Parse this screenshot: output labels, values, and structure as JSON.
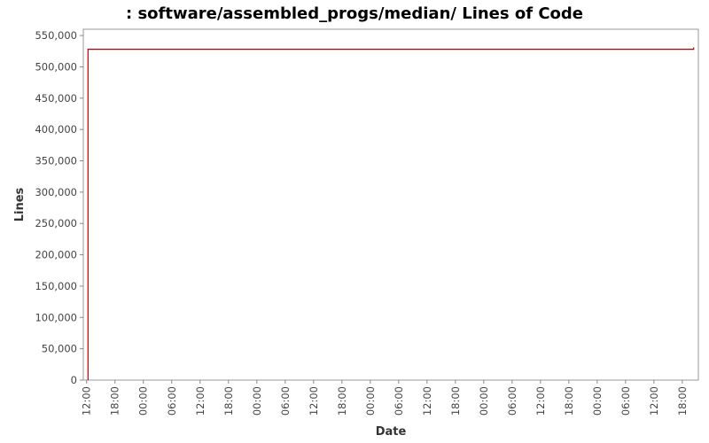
{
  "chart_data": {
    "type": "line",
    "title": ": software/assembled_progs/median/ Lines of Code",
    "xlabel": "Date",
    "ylabel": "Lines",
    "ylim": [
      0,
      560000
    ],
    "y_ticks": [
      0,
      50000,
      100000,
      150000,
      200000,
      250000,
      300000,
      350000,
      400000,
      450000,
      500000,
      550000
    ],
    "y_tick_labels": [
      "0",
      "50,000",
      "100,000",
      "150,000",
      "200,000",
      "250,000",
      "300,000",
      "350,000",
      "400,000",
      "450,000",
      "500,000",
      "550,000"
    ],
    "x_tick_labels": [
      "12:00",
      "18:00",
      "00:00",
      "06:00",
      "12:00",
      "18:00",
      "00:00",
      "06:00",
      "12:00",
      "18:00",
      "00:00",
      "06:00",
      "12:00",
      "18:00",
      "00:00",
      "06:00",
      "12:00",
      "18:00",
      "00:00",
      "06:00",
      "12:00",
      "18:00"
    ],
    "x_tick_hours": [
      0,
      6,
      12,
      18,
      24,
      30,
      36,
      42,
      48,
      54,
      60,
      66,
      72,
      78,
      84,
      90,
      96,
      102,
      108,
      114,
      120,
      126
    ],
    "xlim_hours": [
      -0.7,
      129.4
    ],
    "grid": false,
    "series": [
      {
        "color": "#b00000",
        "x_hours": [
          0.3,
          0.3,
          128.4,
          128.4
        ],
        "values": [
          0,
          528000,
          528000,
          531000
        ]
      }
    ]
  }
}
